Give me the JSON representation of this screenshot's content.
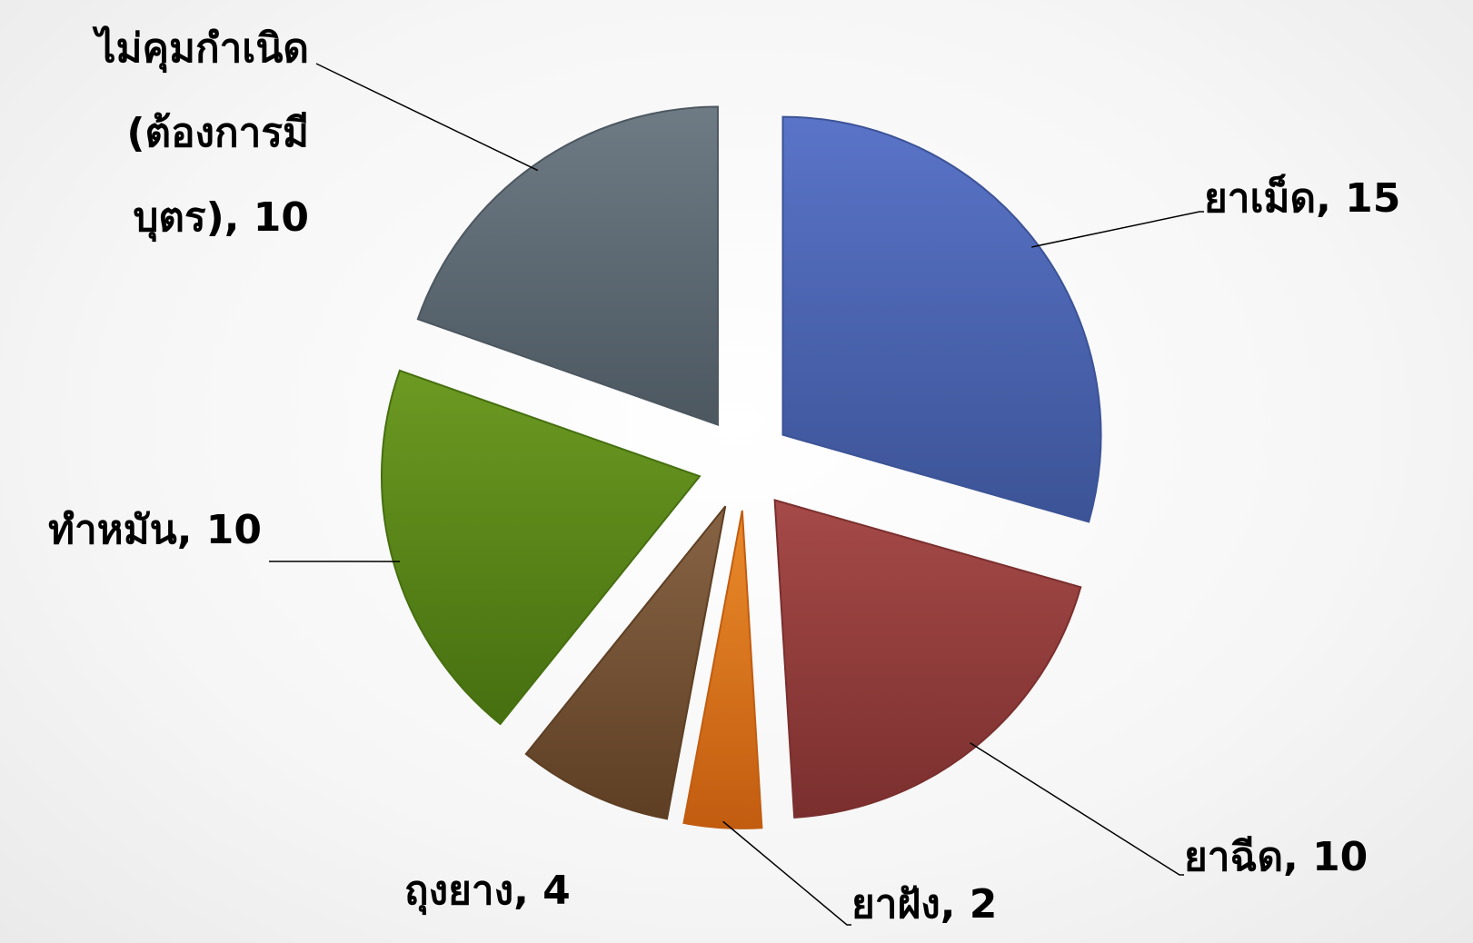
{
  "chart_data": {
    "type": "pie",
    "title": "",
    "categories": [
      "ยาเม็ด",
      "ยาฉีด",
      "ยาฝัง",
      "ถุงยาง",
      "ทำหมัน",
      "ไม่คุมกำเนิด (ต้องการมีบุตร)"
    ],
    "values": [
      15,
      10,
      2,
      4,
      10,
      10
    ],
    "labels": [
      [
        "ยาเม็ด, 15"
      ],
      [
        "ยาฉีด, 10"
      ],
      [
        "ยาฝัง, 2"
      ],
      [
        "ถุงยาง, 4"
      ],
      [
        "ทำหมัน, 10"
      ],
      [
        "ไม่คุมกำเนิด",
        "(ต้องการมี",
        "บุตร), 10"
      ]
    ],
    "colors": [
      [
        "#5a74c8",
        "#3c5396"
      ],
      [
        "#a54a48",
        "#7a2f2e"
      ],
      [
        "#ea8a2a",
        "#c25c10"
      ],
      [
        "#876344",
        "#5e3f24"
      ],
      [
        "#6c9a22",
        "#466f10"
      ],
      [
        "#6e7b84",
        "#4c5760"
      ]
    ],
    "legend": "none",
    "exploded": true
  }
}
